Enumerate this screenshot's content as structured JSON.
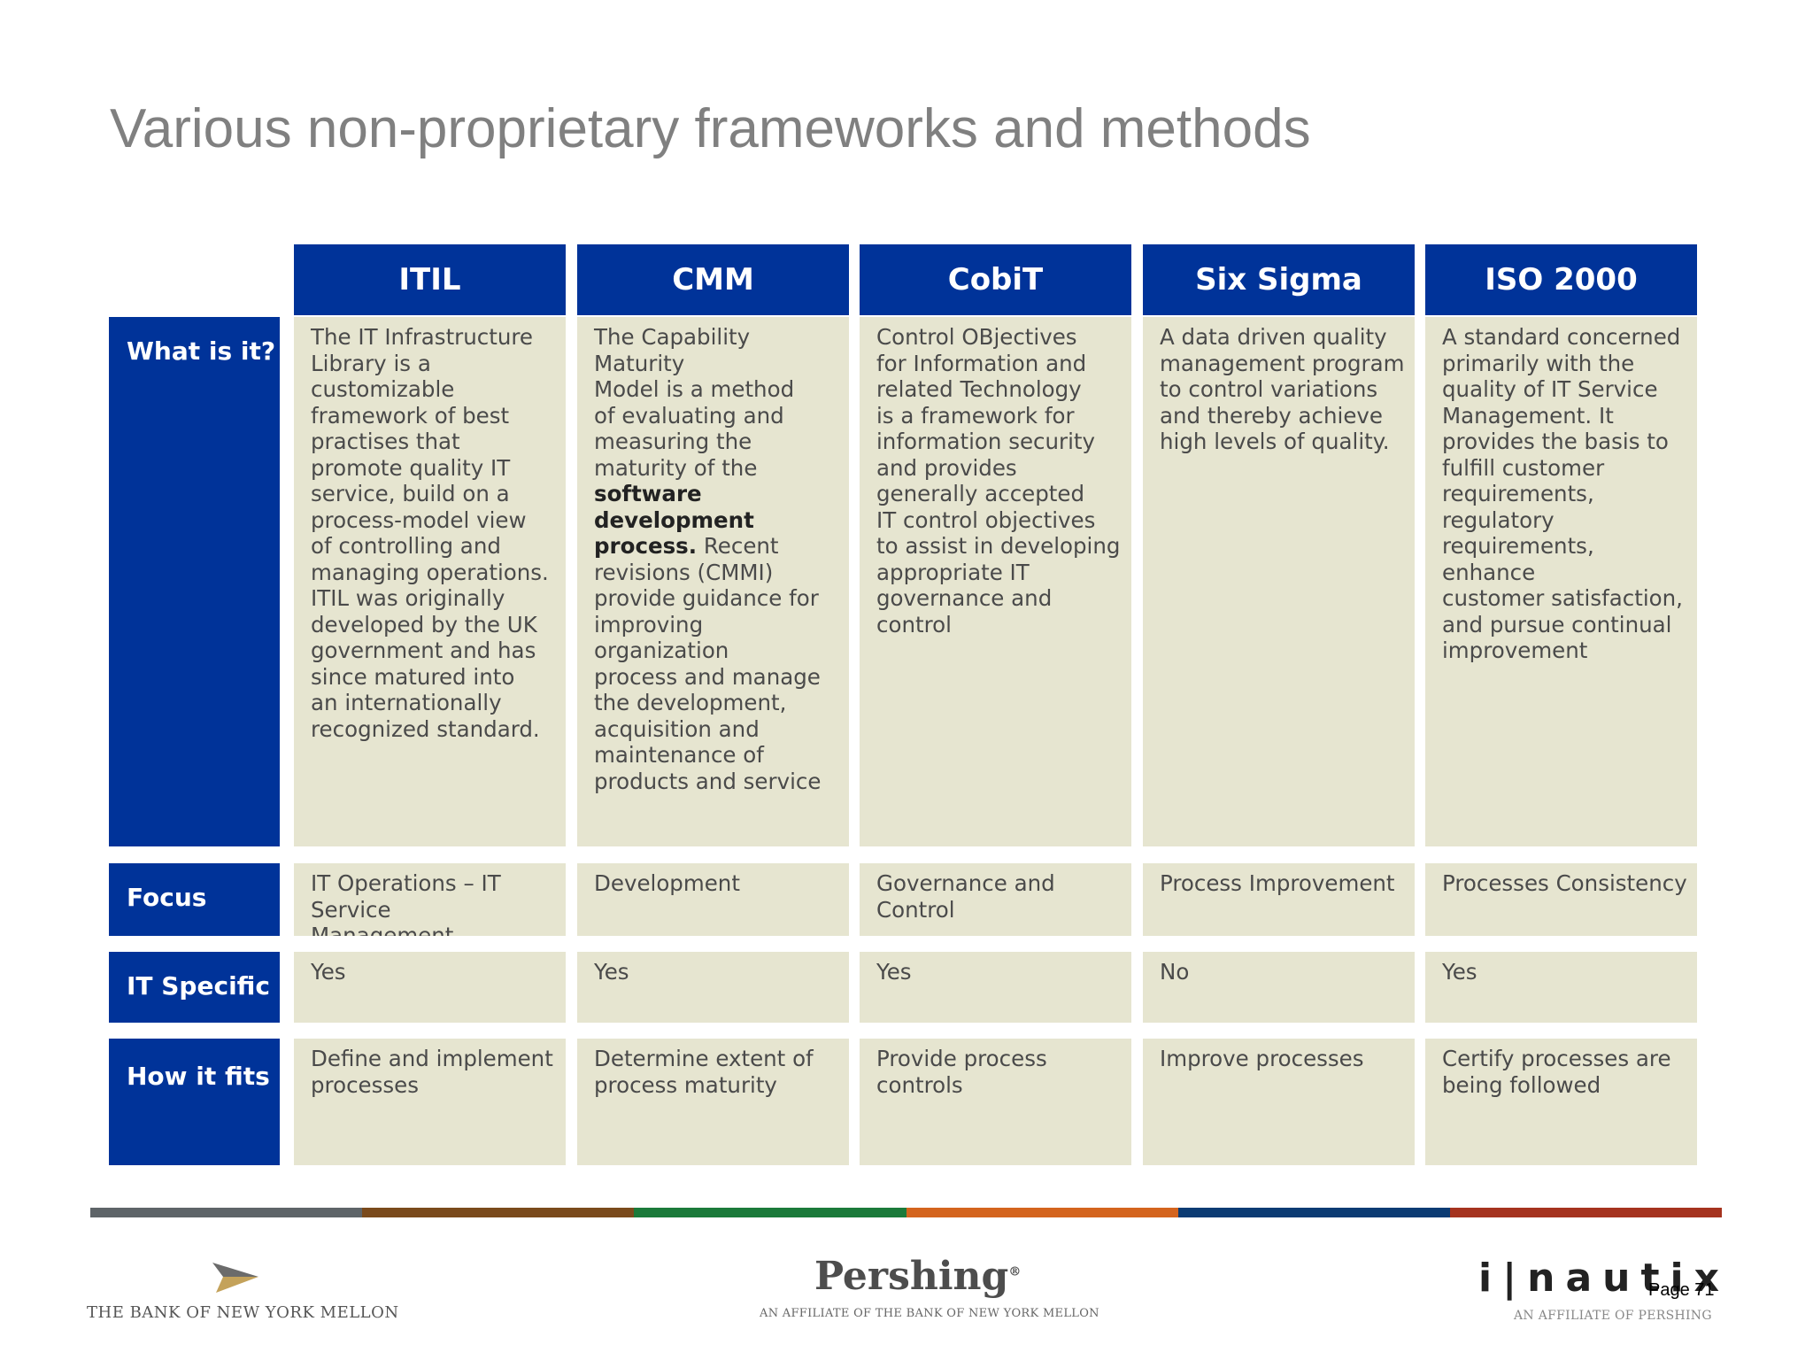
{
  "title": "Various non-proprietary frameworks and methods",
  "columns": [
    "ITIL",
    "CMM",
    "CobiT",
    "Six Sigma",
    "ISO 2000"
  ],
  "rows": {
    "what": {
      "label": "What is it?",
      "cells": [
        [
          "The IT Infrastructure",
          "Library is a",
          "customizable",
          "framework of best",
          "practises that",
          "promote quality IT",
          "service, build on a",
          "process-model view",
          "of controlling and",
          "managing operations.",
          "ITIL was originally",
          "developed by the UK",
          "government and has",
          "since matured into",
          "an internationally",
          "recognized standard."
        ],
        [
          "The Capability Maturity",
          "Model is a method",
          "of evaluating and",
          "measuring the",
          "maturity of the"
        ],
        [
          "Control OBjectives",
          "for Information and",
          "related Technology",
          "is a framework for",
          "information security",
          "and provides",
          "generally accepted",
          "IT control objectives",
          "to assist in developing",
          "appropriate IT",
          "governance and",
          "control"
        ],
        [
          "A data driven quality",
          "management program",
          "to control variations",
          "and thereby achieve",
          "high levels of quality."
        ],
        [
          "A standard concerned",
          "primarily with the",
          "quality of IT Service",
          "Management. It",
          "provides the basis to",
          "fulfill customer",
          "requirements,",
          "regulatory",
          "requirements, enhance",
          "customer satisfaction,",
          "and pursue continual",
          "improvement"
        ]
      ],
      "cmm_bold": [
        "software",
        "development",
        "process."
      ],
      "cmm_after_bold": [
        "Recent",
        "revisions (CMMI)",
        "provide guidance for",
        "improving organization",
        "process and manage",
        "the development,",
        "acquisition and",
        "maintenance of",
        "products and service"
      ]
    },
    "focus": {
      "label": "Focus",
      "cells": [
        "IT Operations – IT Service Management",
        "Development",
        "Governance and Control",
        "Process Improvement",
        "Processes Consistency"
      ]
    },
    "it_specific": {
      "label": "IT Specific",
      "cells": [
        "Yes",
        "Yes",
        "Yes",
        "No",
        "Yes"
      ]
    },
    "how": {
      "label": "How it fits",
      "cells": [
        "Define and implement processes",
        "Determine extent of process maturity",
        "Provide process controls",
        "Improve processes",
        "Certify processes are being followed"
      ]
    }
  },
  "footer": {
    "bny": "THE BANK OF NEW YORK MELLON",
    "pershing": "Pershing",
    "pershing_mark": "®",
    "pershing_sub": "AN AFFILIATE OF THE BANK OF NEW YORK MELLON",
    "inautix": "i|nautix",
    "inautix_sub": "AN AFFILIATE OF PERSHING",
    "page": "Page 71"
  },
  "colors": {
    "header": "#003399",
    "cell": "#e6e5d0",
    "divider": [
      "#5e6468",
      "#7a4a1c",
      "#1b7a3a",
      "#d4641e",
      "#0b3b73",
      "#a5331f"
    ]
  }
}
